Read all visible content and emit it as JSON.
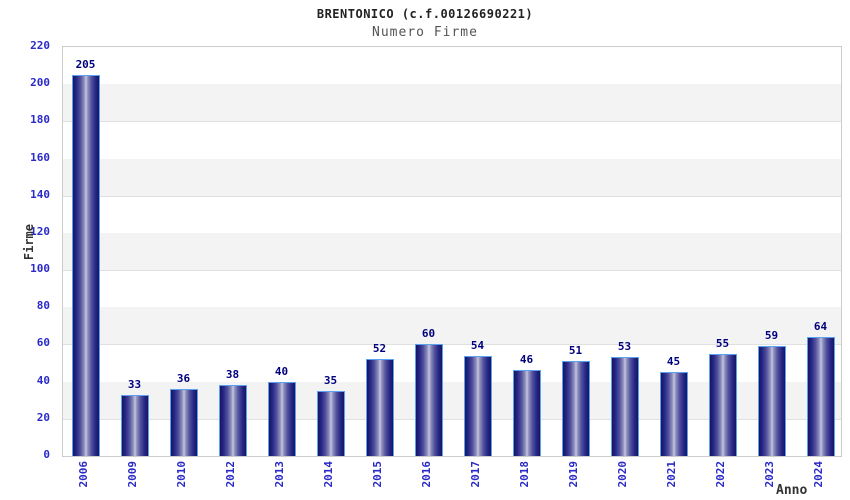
{
  "header": {
    "title": "BRENTONICO (c.f.00126690221)",
    "subtitle": "Numero Firme"
  },
  "chart_data": {
    "type": "bar",
    "title": "BRENTONICO (c.f.00126690221)",
    "subtitle": "Numero Firme",
    "xlabel": "Anno",
    "ylabel": "Firme",
    "categories": [
      "2006",
      "2009",
      "2010",
      "2012",
      "2013",
      "2014",
      "2015",
      "2016",
      "2017",
      "2018",
      "2019",
      "2020",
      "2021",
      "2022",
      "2023",
      "2024"
    ],
    "values": [
      205,
      33,
      36,
      38,
      40,
      35,
      52,
      60,
      54,
      46,
      51,
      53,
      45,
      55,
      59,
      64
    ],
    "ylim": [
      0,
      220
    ],
    "ytick_step": 20,
    "grid": true,
    "legend": "none",
    "value_labels_shown": true,
    "colors": {
      "bar_dark": "#16165f",
      "bar_mid": "#9595c2",
      "bar_highlight": "#c6c6de",
      "bar_border": "#5aa2f0",
      "tick_label": "#2a2ac8",
      "value_label": "#00007d",
      "band_gray": "#f3f3f3",
      "grid_line": "#e0e0e0",
      "plot_border": "#cccccc",
      "title": "#222222",
      "subtitle": "#555555",
      "axis_title": "#333333"
    }
  }
}
